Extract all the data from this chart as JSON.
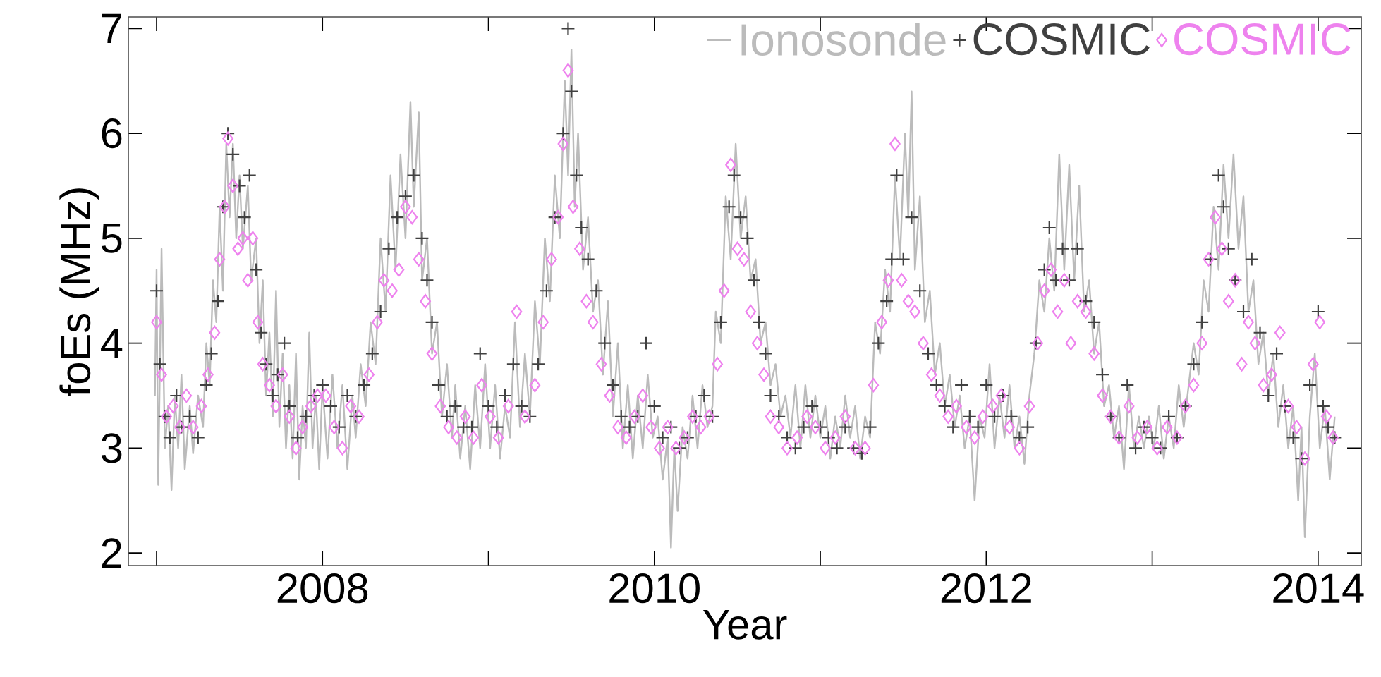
{
  "chart_data": {
    "type": "scatter",
    "xlabel": "Year",
    "ylabel": "foEs (MHz)",
    "xlim": [
      2006.83,
      2014.26
    ],
    "ylim": [
      1.88,
      7.11
    ],
    "xticks": [
      {
        "value": 2007,
        "label": null
      },
      2008,
      {
        "value": 2009,
        "label": null
      },
      2010,
      {
        "value": 2011,
        "label": null
      },
      2012,
      {
        "value": 2013,
        "label": null
      },
      2014
    ],
    "yticks": [
      2,
      3,
      4,
      5,
      6,
      7
    ],
    "legend": "top right",
    "series": [
      {
        "name": "Ionosonde",
        "type": "line",
        "color": "#bbbbbb",
        "marker": "none",
        "line_style": "solid",
        "x": [
          2006.99,
          2007.0,
          2007.01,
          2007.03,
          2007.05,
          2007.07,
          2007.09,
          2007.11,
          2007.13,
          2007.15,
          2007.17,
          2007.2,
          2007.22,
          2007.25,
          2007.28,
          2007.3,
          2007.32,
          2007.34,
          2007.36,
          2007.38,
          2007.4,
          2007.42,
          2007.44,
          2007.46,
          2007.48,
          2007.5,
          2007.52,
          2007.55,
          2007.57,
          2007.6,
          2007.62,
          2007.64,
          2007.66,
          2007.68,
          2007.7,
          2007.72,
          2007.74,
          2007.76,
          2007.78,
          2007.8,
          2007.82,
          2007.84,
          2007.86,
          2007.88,
          2007.9,
          2007.92,
          2007.94,
          2007.96,
          2007.98,
          2008.0,
          2008.03,
          2008.06,
          2008.09,
          2008.12,
          2008.15,
          2008.18,
          2008.2,
          2008.23,
          2008.26,
          2008.29,
          2008.32,
          2008.35,
          2008.38,
          2008.41,
          2008.44,
          2008.47,
          2008.5,
          2008.53,
          2008.55,
          2008.58,
          2008.6,
          2008.63,
          2008.66,
          2008.69,
          2008.72,
          2008.75,
          2008.78,
          2008.8,
          2008.83,
          2008.86,
          2008.89,
          2008.92,
          2008.95,
          2008.98,
          2009.01,
          2009.04,
          2009.07,
          2009.1,
          2009.13,
          2009.16,
          2009.19,
          2009.22,
          2009.25,
          2009.28,
          2009.31,
          2009.34,
          2009.37,
          2009.4,
          2009.43,
          2009.46,
          2009.48,
          2009.5,
          2009.52,
          2009.54,
          2009.57,
          2009.6,
          2009.63,
          2009.66,
          2009.69,
          2009.72,
          2009.75,
          2009.78,
          2009.81,
          2009.84,
          2009.87,
          2009.9,
          2009.93,
          2009.96,
          2009.99,
          2010.02,
          2010.05,
          2010.08,
          2010.1,
          2010.12,
          2010.14,
          2010.17,
          2010.2,
          2010.23,
          2010.26,
          2010.29,
          2010.32,
          2010.35,
          2010.37,
          2010.4,
          2010.43,
          2010.46,
          2010.49,
          2010.52,
          2010.55,
          2010.58,
          2010.61,
          2010.64,
          2010.67,
          2010.7,
          2010.73,
          2010.76,
          2010.79,
          2010.82,
          2010.85,
          2010.88,
          2010.91,
          2010.94,
          2010.97,
          2011.0,
          2011.03,
          2011.06,
          2011.09,
          2011.12,
          2011.15,
          2011.18,
          2011.21,
          2011.24,
          2011.27,
          2011.3,
          2011.33,
          2011.36,
          2011.39,
          2011.42,
          2011.45,
          2011.48,
          2011.51,
          2011.53,
          2011.55,
          2011.57,
          2011.6,
          2011.63,
          2011.66,
          2011.69,
          2011.72,
          2011.75,
          2011.78,
          2011.81,
          2011.84,
          2011.87,
          2011.9,
          2011.93,
          2011.96,
          2011.99,
          2012.02,
          2012.05,
          2012.08,
          2012.11,
          2012.14,
          2012.17,
          2012.2,
          2012.23,
          2012.26,
          2012.29,
          2012.32,
          2012.35,
          2012.38,
          2012.41,
          2012.44,
          2012.47,
          2012.5,
          2012.53,
          2012.56,
          2012.59,
          2012.62,
          2012.65,
          2012.68,
          2012.71,
          2012.74,
          2012.77,
          2012.8,
          2012.83,
          2012.86,
          2012.89,
          2012.92,
          2012.95,
          2012.98,
          2013.01,
          2013.04,
          2013.07,
          2013.1,
          2013.13,
          2013.16,
          2013.19,
          2013.22,
          2013.25,
          2013.28,
          2013.31,
          2013.34,
          2013.37,
          2013.4,
          2013.43,
          2013.46,
          2013.49,
          2013.52,
          2013.55,
          2013.58,
          2013.61,
          2013.64,
          2013.67,
          2013.7,
          2013.73,
          2013.76,
          2013.79,
          2013.82,
          2013.85,
          2013.88,
          2013.9,
          2013.92,
          2013.95,
          2013.98,
          2014.01,
          2014.04,
          2014.07,
          2014.1
        ],
        "values": [
          3.5,
          4.7,
          2.65,
          4.9,
          3.0,
          3.4,
          2.6,
          3.5,
          3.0,
          3.7,
          2.8,
          3.4,
          2.95,
          3.5,
          3.2,
          4.0,
          3.6,
          4.6,
          4.2,
          5.3,
          4.5,
          5.9,
          5.2,
          5.9,
          5.0,
          5.6,
          4.9,
          5.5,
          4.6,
          5.0,
          4.0,
          4.6,
          3.5,
          4.1,
          3.3,
          4.5,
          3.2,
          3.9,
          3.0,
          3.6,
          2.9,
          3.9,
          2.7,
          3.4,
          3.0,
          4.1,
          3.0,
          3.5,
          2.8,
          3.6,
          2.9,
          3.7,
          3.0,
          3.6,
          2.8,
          3.5,
          3.1,
          3.8,
          3.4,
          4.2,
          3.8,
          5.0,
          4.3,
          5.6,
          4.7,
          5.8,
          5.0,
          6.3,
          5.3,
          6.2,
          4.6,
          5.0,
          3.9,
          4.2,
          3.3,
          3.8,
          3.1,
          3.6,
          2.9,
          3.4,
          2.8,
          3.6,
          3.0,
          3.8,
          3.0,
          3.6,
          2.9,
          3.4,
          3.1,
          4.2,
          3.2,
          3.9,
          3.3,
          4.4,
          3.8,
          5.0,
          4.4,
          5.6,
          5.0,
          6.5,
          5.6,
          6.8,
          5.3,
          6.0,
          4.7,
          5.2,
          4.3,
          4.6,
          3.7,
          4.4,
          3.3,
          4.0,
          3.0,
          3.6,
          2.9,
          3.5,
          3.0,
          3.7,
          3.1,
          3.3,
          2.7,
          3.1,
          2.05,
          3.0,
          2.4,
          3.2,
          2.9,
          3.5,
          3.0,
          3.6,
          3.2,
          3.4,
          4.3,
          4.0,
          5.4,
          4.8,
          5.9,
          5.0,
          5.4,
          4.6,
          4.8,
          4.0,
          4.2,
          3.6,
          3.8,
          3.3,
          3.5,
          3.1,
          3.6,
          3.0,
          3.6,
          3.1,
          3.5,
          3.1,
          3.4,
          2.9,
          3.3,
          3.0,
          3.5,
          3.1,
          3.4,
          2.9,
          3.3,
          3.1,
          4.2,
          3.9,
          4.7,
          4.3,
          5.6,
          4.8,
          6.0,
          5.2,
          6.4,
          4.7,
          5.4,
          4.2,
          4.5,
          3.7,
          4.0,
          3.4,
          3.7,
          3.2,
          3.5,
          3.0,
          3.3,
          2.5,
          3.3,
          3.1,
          3.8,
          3.0,
          3.5,
          3.1,
          3.6,
          3.0,
          3.3,
          2.85,
          3.5,
          3.9,
          4.6,
          4.3,
          5.0,
          4.5,
          5.8,
          4.7,
          5.7,
          4.6,
          5.5,
          4.3,
          4.6,
          3.9,
          4.2,
          3.4,
          3.6,
          3.1,
          3.4,
          2.8,
          3.6,
          3.0,
          3.3,
          3.0,
          3.3,
          3.0,
          3.4,
          2.9,
          3.3,
          3.0,
          3.6,
          3.2,
          3.6,
          4.0,
          3.7,
          4.6,
          4.3,
          5.3,
          4.7,
          5.7,
          5.0,
          5.8,
          4.9,
          5.4,
          4.3,
          4.6,
          3.8,
          4.1,
          3.5,
          3.9,
          3.2,
          3.6,
          3.0,
          3.4,
          2.5,
          3.2,
          2.15,
          3.3,
          3.9,
          3.0,
          3.4,
          2.7,
          3.3
        ]
      },
      {
        "name": "COSMIC",
        "color": "#404040",
        "marker": "cross",
        "x": [
          2007.0,
          2007.02,
          2007.05,
          2007.08,
          2007.12,
          2007.15,
          2007.2,
          2007.25,
          2007.3,
          2007.33,
          2007.37,
          2007.4,
          2007.43,
          2007.46,
          2007.5,
          2007.53,
          2007.56,
          2007.6,
          2007.63,
          2007.66,
          2007.7,
          2007.73,
          2007.77,
          2007.8,
          2007.85,
          2007.9,
          2007.95,
          2008.0,
          2008.05,
          2008.1,
          2008.15,
          2008.2,
          2008.25,
          2008.3,
          2008.35,
          2008.4,
          2008.45,
          2008.5,
          2008.55,
          2008.6,
          2008.63,
          2008.66,
          2008.7,
          2008.75,
          2008.8,
          2008.85,
          2008.9,
          2008.95,
          2009.0,
          2009.05,
          2009.1,
          2009.15,
          2009.2,
          2009.25,
          2009.3,
          2009.35,
          2009.4,
          2009.45,
          2009.48,
          2009.5,
          2009.53,
          2009.56,
          2009.6,
          2009.65,
          2009.7,
          2009.75,
          2009.8,
          2009.85,
          2009.9,
          2009.95,
          2010.0,
          2010.05,
          2010.1,
          2010.15,
          2010.2,
          2010.25,
          2010.3,
          2010.35,
          2010.4,
          2010.45,
          2010.48,
          2010.52,
          2010.56,
          2010.6,
          2010.63,
          2010.67,
          2010.7,
          2010.75,
          2010.8,
          2010.85,
          2010.9,
          2010.95,
          2011.0,
          2011.05,
          2011.1,
          2011.15,
          2011.2,
          2011.25,
          2011.3,
          2011.35,
          2011.4,
          2011.43,
          2011.46,
          2011.5,
          2011.55,
          2011.6,
          2011.65,
          2011.7,
          2011.75,
          2011.8,
          2011.85,
          2011.9,
          2011.95,
          2012.0,
          2012.05,
          2012.1,
          2012.15,
          2012.2,
          2012.25,
          2012.3,
          2012.35,
          2012.38,
          2012.42,
          2012.46,
          2012.5,
          2012.55,
          2012.6,
          2012.65,
          2012.7,
          2012.75,
          2012.8,
          2012.85,
          2012.9,
          2012.95,
          2013.0,
          2013.05,
          2013.1,
          2013.15,
          2013.2,
          2013.25,
          2013.3,
          2013.35,
          2013.4,
          2013.43,
          2013.46,
          2013.5,
          2013.55,
          2013.6,
          2013.65,
          2013.7,
          2013.75,
          2013.8,
          2013.85,
          2013.9,
          2013.95,
          2014.0,
          2014.03,
          2014.06,
          2014.1
        ],
        "values": [
          4.5,
          3.8,
          3.3,
          3.1,
          3.5,
          3.2,
          3.3,
          3.1,
          3.6,
          3.9,
          4.4,
          5.3,
          6.0,
          5.8,
          5.5,
          5.2,
          5.6,
          4.7,
          4.1,
          3.8,
          3.5,
          3.7,
          4.0,
          3.4,
          3.1,
          3.3,
          3.5,
          3.6,
          3.4,
          3.2,
          3.5,
          3.3,
          3.6,
          3.9,
          4.3,
          4.9,
          5.2,
          5.4,
          5.6,
          5.0,
          4.6,
          4.2,
          3.6,
          3.3,
          3.4,
          3.2,
          3.2,
          3.9,
          3.4,
          3.2,
          3.5,
          3.8,
          3.4,
          3.3,
          3.8,
          4.5,
          5.2,
          6.0,
          7.0,
          6.4,
          5.6,
          5.1,
          4.8,
          4.5,
          4.0,
          3.6,
          3.3,
          3.2,
          3.3,
          4.0,
          3.4,
          3.1,
          3.2,
          3.0,
          3.1,
          3.3,
          3.5,
          3.3,
          4.2,
          5.3,
          5.6,
          5.2,
          5.0,
          4.6,
          4.2,
          3.9,
          3.5,
          3.3,
          3.1,
          3.0,
          3.2,
          3.4,
          3.2,
          3.1,
          3.0,
          3.2,
          3.0,
          2.95,
          3.2,
          4.0,
          4.4,
          4.8,
          5.6,
          4.8,
          5.2,
          4.5,
          3.9,
          3.6,
          3.4,
          3.2,
          3.6,
          3.3,
          3.2,
          3.6,
          3.3,
          3.5,
          3.3,
          3.1,
          3.2,
          4.0,
          4.7,
          5.1,
          4.6,
          4.9,
          4.6,
          4.9,
          4.4,
          4.2,
          3.7,
          3.3,
          3.1,
          3.6,
          3.0,
          3.2,
          3.1,
          3.0,
          3.3,
          3.1,
          3.4,
          3.8,
          4.2,
          4.8,
          5.6,
          5.3,
          4.9,
          4.6,
          4.3,
          4.8,
          4.1,
          3.5,
          3.9,
          3.4,
          3.1,
          2.9,
          3.6,
          4.3,
          3.4,
          3.2,
          3.1
        ]
      },
      {
        "name": "COSMIC",
        "color": "#ee82ee",
        "marker": "diamond",
        "x": [
          2007.0,
          2007.03,
          2007.06,
          2007.1,
          2007.14,
          2007.18,
          2007.22,
          2007.27,
          2007.31,
          2007.35,
          2007.38,
          2007.41,
          2007.43,
          2007.46,
          2007.49,
          2007.52,
          2007.55,
          2007.58,
          2007.61,
          2007.64,
          2007.68,
          2007.72,
          2007.76,
          2007.8,
          2007.84,
          2007.88,
          2007.93,
          2007.97,
          2008.02,
          2008.07,
          2008.12,
          2008.17,
          2008.22,
          2008.28,
          2008.33,
          2008.37,
          2008.42,
          2008.46,
          2008.5,
          2008.54,
          2008.58,
          2008.62,
          2008.66,
          2008.71,
          2008.76,
          2008.81,
          2008.86,
          2008.91,
          2008.96,
          2009.01,
          2009.06,
          2009.12,
          2009.17,
          2009.22,
          2009.28,
          2009.33,
          2009.38,
          2009.42,
          2009.45,
          2009.48,
          2009.51,
          2009.55,
          2009.59,
          2009.63,
          2009.68,
          2009.73,
          2009.78,
          2009.83,
          2009.88,
          2009.93,
          2009.98,
          2010.03,
          2010.08,
          2010.13,
          2010.18,
          2010.23,
          2010.28,
          2010.33,
          2010.38,
          2010.42,
          2010.46,
          2010.5,
          2010.54,
          2010.58,
          2010.62,
          2010.66,
          2010.7,
          2010.75,
          2010.8,
          2010.86,
          2010.92,
          2010.97,
          2011.03,
          2011.09,
          2011.15,
          2011.21,
          2011.27,
          2011.32,
          2011.37,
          2011.41,
          2011.45,
          2011.49,
          2011.53,
          2011.57,
          2011.62,
          2011.67,
          2011.72,
          2011.77,
          2011.82,
          2011.88,
          2011.93,
          2011.98,
          2012.04,
          2012.09,
          2012.14,
          2012.2,
          2012.26,
          2012.31,
          2012.35,
          2012.39,
          2012.43,
          2012.47,
          2012.51,
          2012.55,
          2012.6,
          2012.65,
          2012.7,
          2012.75,
          2012.8,
          2012.86,
          2012.91,
          2012.97,
          2013.03,
          2013.09,
          2013.15,
          2013.2,
          2013.25,
          2013.3,
          2013.34,
          2013.38,
          2013.42,
          2013.46,
          2013.5,
          2013.54,
          2013.58,
          2013.62,
          2013.67,
          2013.72,
          2013.77,
          2013.82,
          2013.87,
          2013.92,
          2013.97,
          2014.01,
          2014.05,
          2014.09
        ],
        "values": [
          4.2,
          3.7,
          3.3,
          3.4,
          3.2,
          3.5,
          3.2,
          3.4,
          3.7,
          4.1,
          4.8,
          5.3,
          5.95,
          5.5,
          4.9,
          5.0,
          4.6,
          5.0,
          4.2,
          3.8,
          3.6,
          3.4,
          3.7,
          3.3,
          3.0,
          3.2,
          3.4,
          3.5,
          3.5,
          3.2,
          3.0,
          3.4,
          3.3,
          3.7,
          4.2,
          4.6,
          4.5,
          4.7,
          5.3,
          5.2,
          4.8,
          4.4,
          3.9,
          3.4,
          3.2,
          3.1,
          3.3,
          3.1,
          3.6,
          3.3,
          3.1,
          3.4,
          4.3,
          3.3,
          3.6,
          4.2,
          4.8,
          5.2,
          5.9,
          6.6,
          5.3,
          4.9,
          4.4,
          4.2,
          3.8,
          3.5,
          3.2,
          3.1,
          3.3,
          3.5,
          3.2,
          3.0,
          3.2,
          3.0,
          3.1,
          3.3,
          3.2,
          3.3,
          3.8,
          4.5,
          5.7,
          4.9,
          4.8,
          4.3,
          4.0,
          3.7,
          3.3,
          3.2,
          3.0,
          3.1,
          3.3,
          3.2,
          3.0,
          3.1,
          3.3,
          3.0,
          3.0,
          3.6,
          4.2,
          4.6,
          5.9,
          4.6,
          4.4,
          4.3,
          4.0,
          3.7,
          3.5,
          3.3,
          3.4,
          3.2,
          3.1,
          3.3,
          3.4,
          3.5,
          3.2,
          3.0,
          3.4,
          4.0,
          4.5,
          4.7,
          4.3,
          4.6,
          4.0,
          4.4,
          4.3,
          3.9,
          3.5,
          3.3,
          3.1,
          3.4,
          3.1,
          3.2,
          3.0,
          3.2,
          3.1,
          3.4,
          3.6,
          4.0,
          4.8,
          5.2,
          4.9,
          4.4,
          4.6,
          3.8,
          4.2,
          4.0,
          3.6,
          3.7,
          4.1,
          3.4,
          3.2,
          2.9,
          3.8,
          4.2,
          3.3,
          3.1
        ]
      }
    ]
  }
}
